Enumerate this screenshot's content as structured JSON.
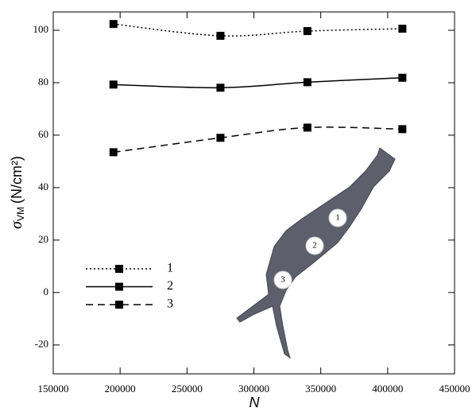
{
  "chart_data": {
    "type": "line",
    "x_label": "N",
    "y_label": {
      "symbol": "σ",
      "subscript": "VM",
      "unit": "(N/cm²)"
    },
    "x": [
      195000,
      275000,
      340000,
      411000
    ],
    "series": [
      {
        "name": "1",
        "color": "#000000",
        "dash": "dotted",
        "values": [
          102.4,
          97.9,
          99.7,
          100.6
        ]
      },
      {
        "name": "2",
        "color": "#000000",
        "dash": "solid",
        "values": [
          79.3,
          78.1,
          80.2,
          81.9
        ]
      },
      {
        "name": "3",
        "color": "#000000",
        "dash": "dashed",
        "values": [
          53.5,
          59,
          62.9,
          62.3
        ]
      }
    ],
    "xlim": [
      150000,
      450000
    ],
    "xticks": [
      150000,
      200000,
      250000,
      300000,
      350000,
      400000,
      450000
    ],
    "ylim": [
      -31,
      107
    ],
    "yticks": [
      -20,
      0,
      20,
      40,
      60,
      80,
      100
    ],
    "grid": false,
    "legend": "lower-left"
  },
  "inset": {
    "labels": [
      "1",
      "2",
      "3"
    ]
  }
}
